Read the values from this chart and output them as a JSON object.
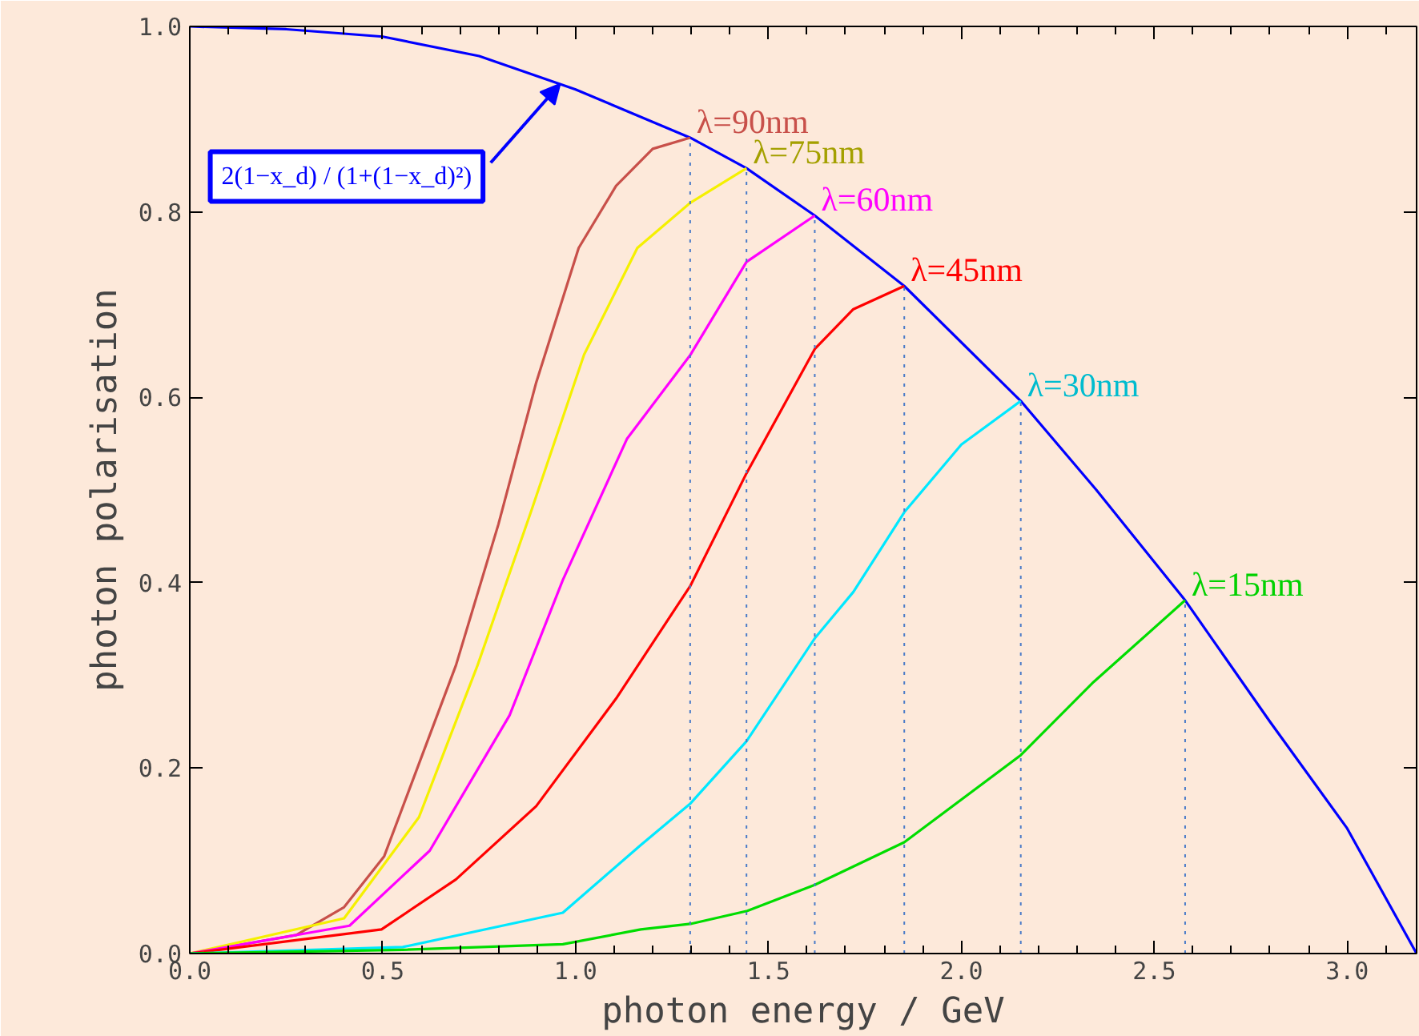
{
  "chart_data": {
    "type": "line",
    "xlabel": "photon energy / GeV",
    "ylabel": "photon polarisation",
    "xlim": [
      0,
      3.18
    ],
    "ylim": [
      0,
      1.0
    ],
    "xticks": [
      {
        "value": 0,
        "label": "0.0"
      },
      {
        "value": 0.1,
        "label": null
      },
      {
        "value": 0.2,
        "label": null
      },
      {
        "value": 0.3,
        "label": null
      },
      {
        "value": 0.4,
        "label": null
      },
      {
        "value": 0.5,
        "label": "0.5"
      },
      {
        "value": 0.6,
        "label": null
      },
      {
        "value": 0.7,
        "label": null
      },
      {
        "value": 0.8,
        "label": null
      },
      {
        "value": 0.9,
        "label": null
      },
      {
        "value": 1.0,
        "label": "1.0"
      },
      {
        "value": 1.1,
        "label": null
      },
      {
        "value": 1.2,
        "label": null
      },
      {
        "value": 1.3,
        "label": null
      },
      {
        "value": 1.4,
        "label": null
      },
      {
        "value": 1.5,
        "label": "1.5"
      },
      {
        "value": 1.6,
        "label": null
      },
      {
        "value": 1.7,
        "label": null
      },
      {
        "value": 1.8,
        "label": null
      },
      {
        "value": 1.9,
        "label": null
      },
      {
        "value": 2.0,
        "label": "2.0"
      },
      {
        "value": 2.1,
        "label": null
      },
      {
        "value": 2.2,
        "label": null
      },
      {
        "value": 2.3,
        "label": null
      },
      {
        "value": 2.4,
        "label": null
      },
      {
        "value": 2.5,
        "label": "2.5"
      },
      {
        "value": 2.6,
        "label": null
      },
      {
        "value": 2.7,
        "label": null
      },
      {
        "value": 2.8,
        "label": null
      },
      {
        "value": 2.9,
        "label": null
      },
      {
        "value": 3.0,
        "label": "3.0"
      },
      {
        "value": 3.1,
        "label": null
      }
    ],
    "yticks": [
      {
        "value": 0,
        "label": "0.0"
      },
      {
        "value": 0.2,
        "label": "0.2"
      },
      {
        "value": 0.4,
        "label": "0.4"
      },
      {
        "value": 0.6,
        "label": "0.6"
      },
      {
        "value": 0.8,
        "label": "0.8"
      },
      {
        "value": 1.0,
        "label": "1.0"
      }
    ],
    "grid": false,
    "marker": "none",
    "line_style": "solid",
    "annotations": [
      {
        "text": "2(1−x_d) / (1+(1−x_d)²)",
        "x": 0.96,
        "y": 0.938
      }
    ],
    "series": [
      {
        "color": "#0000ff",
        "x": [
          0,
          0.25,
          0.5,
          0.75,
          1.0,
          1.297,
          1.443,
          1.62,
          1.852,
          2.154,
          2.35,
          2.58,
          2.8,
          3.0,
          3.18
        ],
        "values": [
          1.0,
          0.997,
          0.989,
          0.968,
          0.932,
          0.88,
          0.847,
          0.796,
          0.72,
          0.596,
          0.5,
          0.381,
          0.25,
          0.135,
          0.0
        ]
      },
      {
        "name": "λ=90nm",
        "color": "#c8504a",
        "x": [
          0,
          0.276,
          0.4,
          0.504,
          0.69,
          0.8,
          0.898,
          1.008,
          1.105,
          1.2,
          1.297
        ],
        "values": [
          0,
          0.02,
          0.05,
          0.105,
          0.311,
          0.463,
          0.616,
          0.761,
          0.828,
          0.868,
          0.88
        ]
      },
      {
        "name": "λ=75nm",
        "color": "#f5f000",
        "x": [
          0,
          0.4,
          0.594,
          0.746,
          0.884,
          1.022,
          1.16,
          1.298,
          1.443
        ],
        "values": [
          0,
          0.038,
          0.147,
          0.311,
          0.476,
          0.646,
          0.761,
          0.81,
          0.847
        ]
      },
      {
        "name": "λ=60nm",
        "color": "#ff00ff",
        "x": [
          0,
          0.414,
          0.622,
          0.829,
          0.967,
          1.133,
          1.298,
          1.443,
          1.62
        ],
        "values": [
          0,
          0.03,
          0.111,
          0.257,
          0.403,
          0.555,
          0.646,
          0.746,
          0.796
        ]
      },
      {
        "name": "λ=45nm",
        "color": "#ff0000",
        "x": [
          0,
          0.497,
          0.69,
          0.898,
          1.105,
          1.298,
          1.443,
          1.62,
          1.72,
          1.852
        ],
        "values": [
          0,
          0.026,
          0.08,
          0.159,
          0.275,
          0.397,
          0.518,
          0.652,
          0.695,
          0.72
        ]
      },
      {
        "name": "λ=30nm",
        "color": "#00e8ff",
        "x": [
          0,
          0.552,
          0.967,
          1.169,
          1.298,
          1.443,
          1.62,
          1.72,
          1.852,
          2.0,
          2.154
        ],
        "values": [
          0,
          0.007,
          0.044,
          0.117,
          0.162,
          0.229,
          0.34,
          0.39,
          0.476,
          0.549,
          0.596
        ]
      },
      {
        "name": "λ=15nm",
        "color": "#00dd00",
        "x": [
          0,
          0.552,
          0.967,
          1.169,
          1.298,
          1.445,
          1.62,
          1.852,
          2.154,
          2.343,
          2.58
        ],
        "values": [
          0,
          0.004,
          0.01,
          0.026,
          0.032,
          0.046,
          0.074,
          0.12,
          0.214,
          0.293,
          0.381
        ]
      },
      {
        "color": "#4a7bc8",
        "line_style": "dotted",
        "x": [
          1.297,
          1.297
        ],
        "values": [
          0,
          0.88
        ]
      },
      {
        "color": "#4a7bc8",
        "line_style": "dotted",
        "x": [
          1.443,
          1.443
        ],
        "values": [
          0,
          0.847
        ]
      },
      {
        "color": "#4a7bc8",
        "line_style": "dotted",
        "x": [
          1.62,
          1.62
        ],
        "values": [
          0,
          0.796
        ]
      },
      {
        "color": "#4a7bc8",
        "line_style": "dotted",
        "x": [
          1.852,
          1.852
        ],
        "values": [
          0,
          0.72
        ]
      },
      {
        "color": "#4a7bc8",
        "line_style": "dotted",
        "x": [
          2.154,
          2.154
        ],
        "values": [
          0,
          0.596
        ]
      },
      {
        "color": "#4a7bc8",
        "line_style": "dotted",
        "x": [
          2.58,
          2.58
        ],
        "values": [
          0,
          0.381
        ]
      }
    ]
  }
}
